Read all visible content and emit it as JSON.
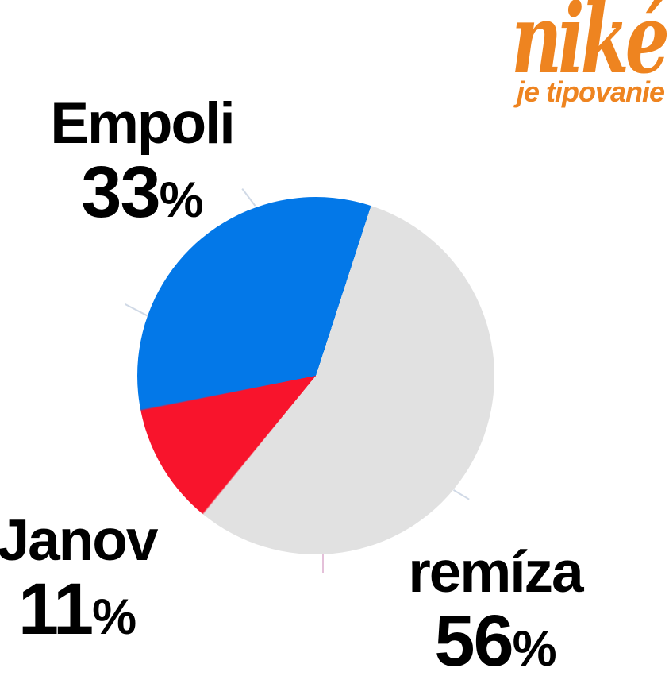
{
  "brand": {
    "name": "niké",
    "tagline": "je tipovanie",
    "color": "#ee8420"
  },
  "chart_data": {
    "type": "pie",
    "title": "",
    "slices": [
      {
        "label": "Empoli",
        "value": "33",
        "unit": "%",
        "color": "#0378e8"
      },
      {
        "label": "Janov",
        "value": "11",
        "unit": "%",
        "color": "#f8142c"
      },
      {
        "label": "remíza",
        "value": "56",
        "unit": "%",
        "color": "#e1e1e1"
      }
    ],
    "values_pct": [
      33,
      11,
      56
    ],
    "start_angle_deg": 18,
    "direction": "clockwise",
    "draw_order": [
      2,
      1,
      0
    ],
    "legend_position": "labels-around-pie",
    "text_color": "#000000",
    "background_color": "#ffffff"
  }
}
